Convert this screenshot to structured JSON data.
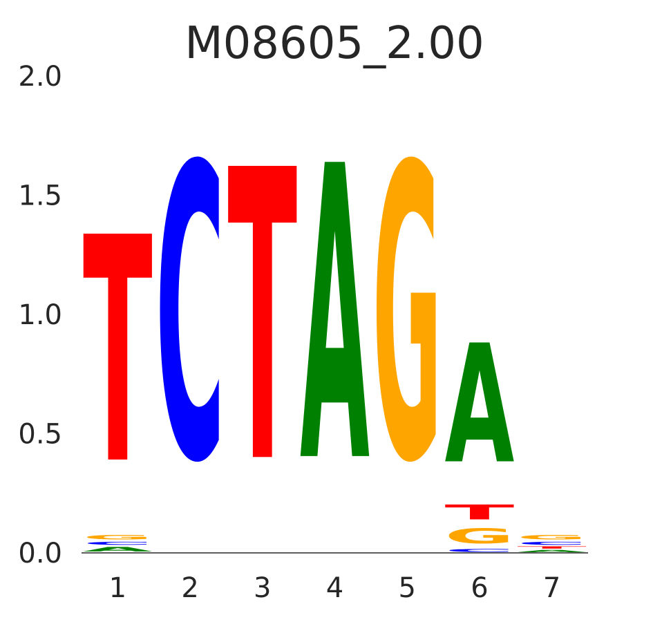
{
  "chart_data": {
    "type": "sequence-logo",
    "title": "M08605_2.00",
    "xlabel": "",
    "ylabel": "",
    "ylim": [
      0,
      2.0
    ],
    "yticks": [
      "0.0",
      "0.5",
      "1.0",
      "1.5",
      "2.0"
    ],
    "positions": [
      "1",
      "2",
      "3",
      "4",
      "5",
      "6",
      "7"
    ],
    "colors": {
      "A": "#008000",
      "C": "#0000ff",
      "G": "#ffa500",
      "T": "#ff0000"
    },
    "stacks": [
      [
        {
          "base": "A",
          "value": 0.03
        },
        {
          "base": "C",
          "value": 0.02
        },
        {
          "base": "G",
          "value": 0.03
        },
        {
          "base": "T",
          "value": 1.52
        }
      ],
      [
        {
          "base": "C",
          "value": 1.98
        }
      ],
      [
        {
          "base": "T",
          "value": 1.96
        }
      ],
      [
        {
          "base": "A",
          "value": 1.98
        }
      ],
      [
        {
          "base": "G",
          "value": 1.98
        }
      ],
      [
        {
          "base": "C",
          "value": 0.02
        },
        {
          "base": "G",
          "value": 0.1
        },
        {
          "base": "T",
          "value": 0.1
        },
        {
          "base": "A",
          "value": 0.8
        }
      ],
      [
        {
          "base": "A",
          "value": 0.015
        },
        {
          "base": "T",
          "value": 0.015
        },
        {
          "base": "C",
          "value": 0.02
        },
        {
          "base": "G",
          "value": 0.03
        }
      ]
    ]
  }
}
